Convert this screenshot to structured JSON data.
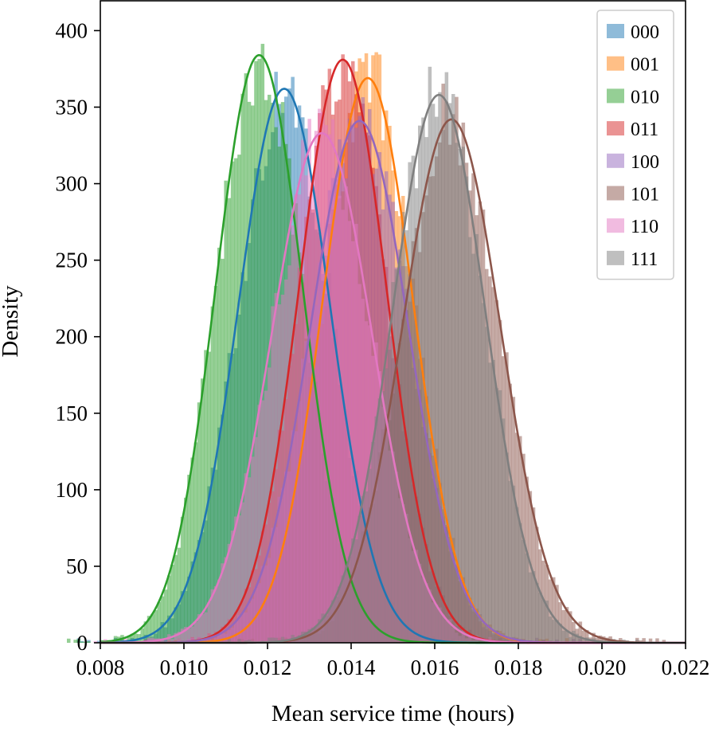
{
  "chart_data": {
    "type": "histogram",
    "xlabel": "Mean service time (hours)",
    "ylabel": "Density",
    "xlim": [
      0.008,
      0.022
    ],
    "ylim": [
      0,
      420
    ],
    "x_ticks": [
      "0.008",
      "0.010",
      "0.012",
      "0.014",
      "0.016",
      "0.018",
      "0.020",
      "0.022"
    ],
    "y_ticks": [
      "0",
      "50",
      "100",
      "150",
      "200",
      "250",
      "300",
      "350",
      "400"
    ],
    "grid": false,
    "legend_position": "top-right",
    "bin_width": 8e-05,
    "series": [
      {
        "name": "000",
        "color": "#1f77b4",
        "kde_peak_x": 0.0124,
        "kde_peak_density": 362,
        "sigma": 0.0011
      },
      {
        "name": "001",
        "color": "#ff7f0e",
        "kde_peak_x": 0.0144,
        "kde_peak_density": 369,
        "sigma": 0.00108
      },
      {
        "name": "010",
        "color": "#2ca02c",
        "kde_peak_x": 0.0118,
        "kde_peak_density": 384,
        "sigma": 0.00104
      },
      {
        "name": "011",
        "color": "#d62728",
        "kde_peak_x": 0.0138,
        "kde_peak_density": 381,
        "sigma": 0.00105
      },
      {
        "name": "100",
        "color": "#9467bd",
        "kde_peak_x": 0.0142,
        "kde_peak_density": 341,
        "sigma": 0.00117
      },
      {
        "name": "101",
        "color": "#8c564b",
        "kde_peak_x": 0.0164,
        "kde_peak_density": 342,
        "sigma": 0.00117
      },
      {
        "name": "110",
        "color": "#e377c2",
        "kde_peak_x": 0.0133,
        "kde_peak_density": 333,
        "sigma": 0.0012
      },
      {
        "name": "111",
        "color": "#7f7f7f",
        "kde_peak_x": 0.0161,
        "kde_peak_density": 358,
        "sigma": 0.00111
      }
    ]
  }
}
